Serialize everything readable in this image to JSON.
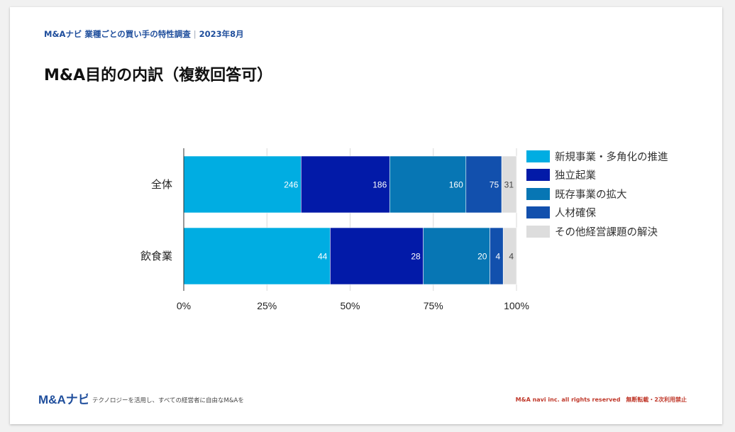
{
  "header": {
    "title": "M&Aナビ 業種ごとの買い手の特性調査",
    "date": "2023年8月"
  },
  "page_title": "M&A目的の内訳（複数回答可）",
  "colors": {
    "series": [
      "#00ade2",
      "#021aa8",
      "#0776b4",
      "#1250ad",
      "#dddddd"
    ],
    "brand": "#1f4e9c",
    "copyright": "#c0392b"
  },
  "chart_data": {
    "type": "bar",
    "orientation": "horizontal",
    "stacked": true,
    "normalized": true,
    "categories": [
      "全体",
      "飲食業"
    ],
    "series": [
      {
        "name": "新規事業・多角化の推進",
        "values": [
          246,
          44
        ]
      },
      {
        "name": "独立起業",
        "values": [
          186,
          28
        ]
      },
      {
        "name": "既存事業の拡大",
        "values": [
          160,
          20
        ]
      },
      {
        "name": "人材確保",
        "values": [
          75,
          4
        ]
      },
      {
        "name": "その他経営課題の解決",
        "values": [
          31,
          4
        ]
      }
    ],
    "x_ticks": [
      "0%",
      "25%",
      "50%",
      "75%",
      "100%"
    ],
    "xlim": [
      0,
      100
    ],
    "legend": "right"
  },
  "footer": {
    "logo_text": "M&Aナビ",
    "tagline": "テクノロジーを活用し、すべての経営者に自由なM&Aを",
    "copyright": "M&A navi inc. all rights reserved　無断転載・2次利用禁止"
  }
}
